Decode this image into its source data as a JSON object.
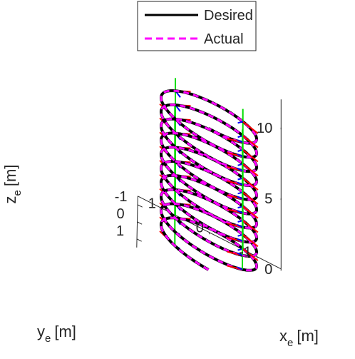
{
  "chart_data": {
    "type": "line",
    "projection": "3d",
    "title": "",
    "xlabel": "x",
    "xlabel_sub": "e",
    "xlabel_unit": "[m]",
    "ylabel": "y",
    "ylabel_sub": "e",
    "ylabel_unit": "[m]",
    "zlabel": "z",
    "zlabel_sub": "e",
    "zlabel_unit": "[m]",
    "xlim": [
      -1.5,
      1.5
    ],
    "ylim": [
      -1.5,
      1.5
    ],
    "zlim": [
      0,
      12
    ],
    "x_ticks": [
      {
        "v": -1,
        "label": "-1"
      },
      {
        "v": 0,
        "label": "0"
      },
      {
        "v": 1,
        "label": "1"
      }
    ],
    "y_ticks": [
      {
        "v": -1,
        "label": "-1"
      },
      {
        "v": 0,
        "label": "0"
      },
      {
        "v": 1,
        "label": "1"
      }
    ],
    "z_ticks": [
      {
        "v": 0,
        "label": "0"
      },
      {
        "v": 5,
        "label": "5"
      },
      {
        "v": 10,
        "label": "10"
      }
    ],
    "grid": false,
    "legend_position": "top",
    "series": [
      {
        "name": "Desired",
        "color": "#000000",
        "style": "solid",
        "helix": {
          "radius": 1,
          "z_start": 0.4,
          "z_end": 10.4,
          "turns": 10
        }
      },
      {
        "name": "Actual",
        "color": "#ff00ff",
        "style": "dashed",
        "helix": {
          "radius": 1,
          "z_start": 0.4,
          "z_end": 10.4,
          "turns": 10
        }
      }
    ],
    "frame_colors": {
      "x": "#ff0000",
      "y": "#00dd00",
      "z": "#0000ff"
    },
    "frame_count": 40
  }
}
